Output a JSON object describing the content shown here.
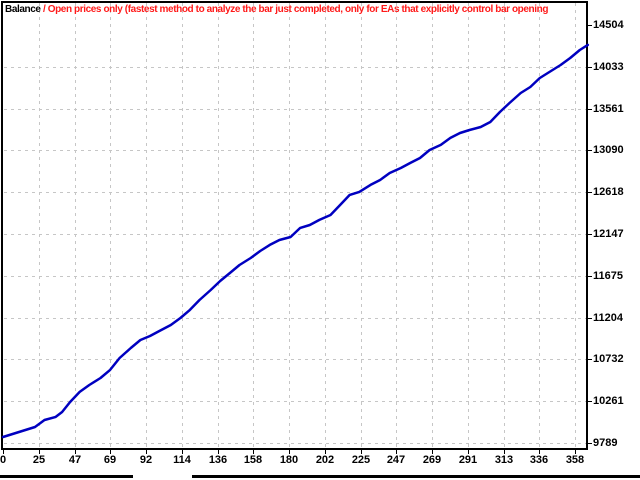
{
  "header": {
    "series_label": "Balance",
    "note": " / Open prices only (fastest method to analyze the bar just completed, only for EAs that explicitly control bar opening"
  },
  "colors": {
    "background": "#FFFFFF",
    "balance_line": "#0000C0",
    "note_red": "#FF1A1A",
    "grid": "#C6C6C6",
    "border": "#000000",
    "label_text": "#000000"
  },
  "chart_data": {
    "type": "line",
    "title": "Balance",
    "xlabel": "",
    "ylabel": "",
    "grid": true,
    "legend_position": "top-left",
    "x_ticks": [
      0,
      25,
      47,
      69,
      92,
      114,
      136,
      158,
      180,
      202,
      225,
      247,
      269,
      291,
      313,
      336,
      358
    ],
    "y_ticks": [
      14504,
      14033,
      13561,
      13090,
      12618,
      12147,
      11675,
      11204,
      10732,
      10261,
      9789
    ],
    "xlim": [
      0,
      366
    ],
    "ylim": [
      9789,
      14504
    ],
    "series": [
      {
        "name": "Balance",
        "color": "#0000C0",
        "points": [
          [
            0,
            9857
          ],
          [
            8,
            9902
          ],
          [
            14,
            9936
          ],
          [
            20,
            9970
          ],
          [
            26,
            10049
          ],
          [
            33,
            10083
          ],
          [
            37,
            10139
          ],
          [
            42,
            10252
          ],
          [
            48,
            10365
          ],
          [
            54,
            10443
          ],
          [
            61,
            10522
          ],
          [
            67,
            10613
          ],
          [
            73,
            10748
          ],
          [
            80,
            10861
          ],
          [
            86,
            10951
          ],
          [
            92,
            10996
          ],
          [
            98,
            11053
          ],
          [
            105,
            11120
          ],
          [
            111,
            11199
          ],
          [
            117,
            11290
          ],
          [
            123,
            11402
          ],
          [
            130,
            11515
          ],
          [
            136,
            11617
          ],
          [
            142,
            11707
          ],
          [
            148,
            11797
          ],
          [
            155,
            11876
          ],
          [
            161,
            11955
          ],
          [
            167,
            12023
          ],
          [
            173,
            12079
          ],
          [
            180,
            12113
          ],
          [
            186,
            12215
          ],
          [
            192,
            12248
          ],
          [
            198,
            12305
          ],
          [
            205,
            12361
          ],
          [
            211,
            12474
          ],
          [
            217,
            12587
          ],
          [
            223,
            12621
          ],
          [
            230,
            12700
          ],
          [
            236,
            12756
          ],
          [
            242,
            12835
          ],
          [
            249,
            12891
          ],
          [
            255,
            12948
          ],
          [
            261,
            13004
          ],
          [
            267,
            13094
          ],
          [
            274,
            13151
          ],
          [
            280,
            13230
          ],
          [
            286,
            13286
          ],
          [
            292,
            13320
          ],
          [
            299,
            13354
          ],
          [
            305,
            13410
          ],
          [
            311,
            13523
          ],
          [
            317,
            13624
          ],
          [
            324,
            13737
          ],
          [
            330,
            13805
          ],
          [
            336,
            13906
          ],
          [
            342,
            13974
          ],
          [
            349,
            14053
          ],
          [
            355,
            14132
          ],
          [
            361,
            14222
          ],
          [
            366,
            14279
          ]
        ]
      }
    ]
  }
}
